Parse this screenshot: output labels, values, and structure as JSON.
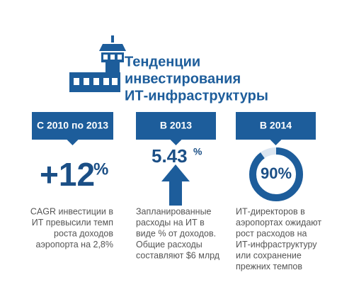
{
  "title": {
    "lines": [
      "Тенденции",
      "инвестирования",
      "ИТ-инфраструктуры"
    ]
  },
  "columns": [
    {
      "header": "С 2010 по 2013",
      "figure": "+12",
      "unit": "%",
      "description": [
        "CAGR инвестиции в",
        "ИТ превысили темп",
        "роста доходов",
        "аэропорта на 2,8%"
      ]
    },
    {
      "header": "В 2013",
      "figure": "5.43",
      "unit": "%",
      "description": [
        "Запланированные",
        "расходы на ИТ в",
        "виде % от доходов.",
        "Общие расходы",
        "составляют $6 млрд"
      ]
    },
    {
      "header": "В 2014",
      "value": 90,
      "value_label": "90%",
      "description": [
        "ИТ-директоров в",
        "аэропортах ожидают",
        "рост расходов на",
        "ИТ-инфраструктуру",
        "или сохранение",
        "прежних темпов"
      ]
    }
  ]
}
